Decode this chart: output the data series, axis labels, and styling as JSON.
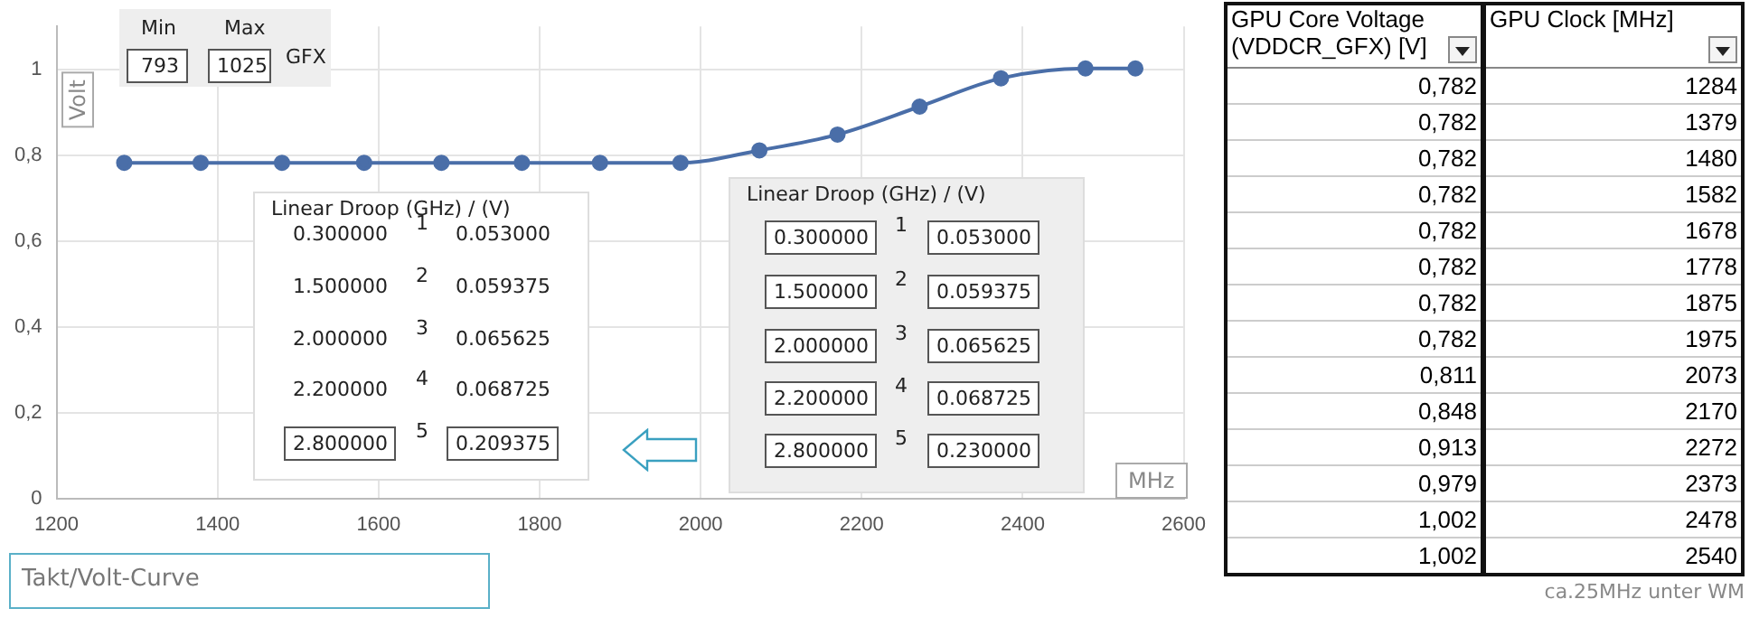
{
  "chart_data": {
    "type": "line",
    "xlabel": "MHz",
    "ylabel": "Volt",
    "x": [
      1284,
      1379,
      1480,
      1582,
      1678,
      1778,
      1875,
      1975,
      2073,
      2170,
      2272,
      2373,
      2478,
      2540
    ],
    "values": [
      0.782,
      0.782,
      0.782,
      0.782,
      0.782,
      0.782,
      0.782,
      0.782,
      0.811,
      0.848,
      0.913,
      0.979,
      1.002,
      1.002
    ],
    "color": "#4a6ea8",
    "marker": "circle",
    "grid": true,
    "xlim": [
      1200,
      2600
    ],
    "xticks": [
      1200,
      1400,
      1600,
      1800,
      2000,
      2200,
      2400,
      2600
    ],
    "ylim": [
      0,
      1.1
    ],
    "yticks": [
      0,
      {
        "value": 0.2,
        "label": "0,2"
      },
      {
        "value": 0.4,
        "label": "0,4"
      },
      {
        "value": 0.6,
        "label": "0,6"
      },
      {
        "value": 0.8,
        "label": "0,8"
      },
      1
    ],
    "annotations": [
      "Min",
      "Max",
      "793",
      "1025",
      "GFX",
      "Linear Droop (GHz) / (V)",
      "0.300000",
      "1",
      "0.053000",
      "1.500000",
      "2",
      "0.059375",
      "2.000000",
      "3",
      "0.065625",
      "2.200000",
      "4",
      "0.068725",
      "2.800000",
      "5",
      "0.209375",
      "Linear Droop (GHz) / (V)",
      "0.300000",
      "1",
      "0.053000",
      "1.500000",
      "2",
      "0.059375",
      "2.000000",
      "3",
      "0.065625",
      "2.200000",
      "4",
      "0.068725",
      "2.800000",
      "5",
      "0.230000",
      "GPU Core Voltage (VDDCR_GFX) [V]",
      "GPU Clock [MHz]",
      "0,782",
      "1284",
      "0,782",
      "1379",
      "0,782",
      "1480",
      "0,782",
      "1582",
      "0,782",
      "1678",
      "0,782",
      "1778",
      "0,782",
      "1875",
      "0,782",
      "1975",
      "0,811",
      "2073",
      "0,848",
      "2170",
      "0,913",
      "2272",
      "0,979",
      "2373",
      "1,002",
      "2478",
      "1,002",
      "2540",
      "Takt/Volt-Curve",
      "ca.25MHz unter WM"
    ]
  }
}
